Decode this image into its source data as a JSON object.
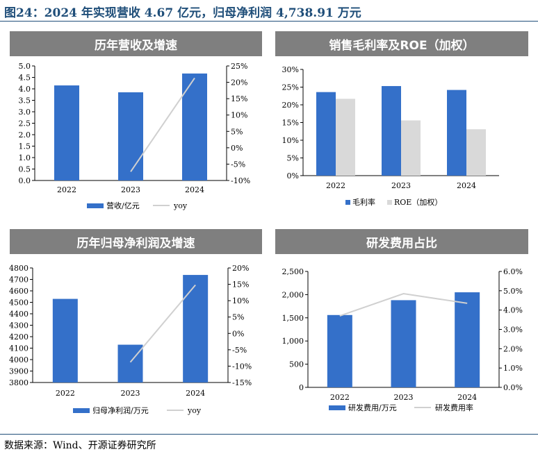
{
  "figure_title": "图24：2024 年实现营收 4.67 亿元，归母净利润 4,738.91 万元",
  "source": "数据来源：Wind、开源证券研究所",
  "colors": {
    "bar_blue": "#3470c9",
    "bar_gray": "#d9d9d9",
    "line_gray": "#d0d0d0",
    "header_gray": "#7f7f7f",
    "title_blue": "#1f4e79"
  },
  "chart_data": [
    {
      "id": "revenue",
      "type": "bar",
      "panel_title": "历年营收及增速",
      "categories": [
        "2022",
        "2023",
        "2024"
      ],
      "series": [
        {
          "name": "营收/亿元",
          "values": [
            4.15,
            3.85,
            4.67
          ],
          "axis": "left",
          "render": "bar"
        },
        {
          "name": "yoy",
          "values": [
            null,
            -7.3,
            21.3
          ],
          "axis": "right",
          "render": "line"
        }
      ],
      "left_axis": {
        "min": 0,
        "max": 5,
        "step": 0.5,
        "ticks": [
          "0.0",
          "0.5",
          "1.0",
          "1.5",
          "2.0",
          "2.5",
          "3.0",
          "3.5",
          "4.0",
          "4.5",
          "5.0"
        ]
      },
      "right_axis": {
        "min": -10,
        "max": 25,
        "step": 5,
        "ticks": [
          "-10%",
          "-5%",
          "0%",
          "5%",
          "10%",
          "15%",
          "20%",
          "25%"
        ]
      },
      "legend_position": "bottom"
    },
    {
      "id": "margin",
      "type": "bar",
      "panel_title": "销售毛利率及ROE（加权）",
      "categories": [
        "2022",
        "2023",
        "2024"
      ],
      "series": [
        {
          "name": "毛利率",
          "values": [
            23.6,
            25.3,
            24.2
          ],
          "axis": "left",
          "render": "bar"
        },
        {
          "name": "ROE（加权）",
          "values": [
            21.7,
            15.6,
            13.1
          ],
          "axis": "left",
          "render": "bar"
        }
      ],
      "left_axis": {
        "min": 0,
        "max": 30,
        "step": 5,
        "ticks": [
          "0%",
          "5%",
          "10%",
          "15%",
          "20%",
          "25%",
          "30%"
        ]
      },
      "legend_position": "bottom"
    },
    {
      "id": "netprofit",
      "type": "bar",
      "panel_title": "历年归母净利润及增速",
      "categories": [
        "2022",
        "2023",
        "2024"
      ],
      "series": [
        {
          "name": "归母净利润/万元",
          "values": [
            4530,
            4130,
            4739
          ],
          "axis": "left",
          "render": "bar"
        },
        {
          "name": "yoy",
          "values": [
            null,
            -8.8,
            14.8
          ],
          "axis": "right",
          "render": "line"
        }
      ],
      "left_axis": {
        "min": 3800,
        "max": 4800,
        "step": 100,
        "ticks": [
          "3800",
          "3900",
          "4000",
          "4100",
          "4200",
          "4300",
          "4400",
          "4500",
          "4600",
          "4700",
          "4800"
        ]
      },
      "right_axis": {
        "min": -15,
        "max": 20,
        "step": 5,
        "ticks": [
          "-15%",
          "-10%",
          "-5%",
          "0%",
          "5%",
          "10%",
          "15%",
          "20%"
        ]
      },
      "legend_position": "bottom"
    },
    {
      "id": "rnd",
      "type": "bar",
      "panel_title": "研发费用占比",
      "categories": [
        "2022",
        "2023",
        "2024"
      ],
      "series": [
        {
          "name": "研发费用/万元",
          "values": [
            1560,
            1880,
            2050
          ],
          "axis": "left",
          "render": "bar"
        },
        {
          "name": "研发费用率",
          "values": [
            3.7,
            4.85,
            4.35
          ],
          "axis": "right",
          "render": "line"
        }
      ],
      "left_axis": {
        "min": 0,
        "max": 2500,
        "step": 500,
        "ticks": [
          "0",
          "500",
          "1,000",
          "1,500",
          "2,000",
          "2,500"
        ]
      },
      "right_axis": {
        "min": 0,
        "max": 6,
        "step": 1,
        "ticks": [
          "0.0%",
          "1.0%",
          "2.0%",
          "3.0%",
          "4.0%",
          "5.0%",
          "6.0%"
        ]
      },
      "legend_position": "bottom"
    }
  ]
}
